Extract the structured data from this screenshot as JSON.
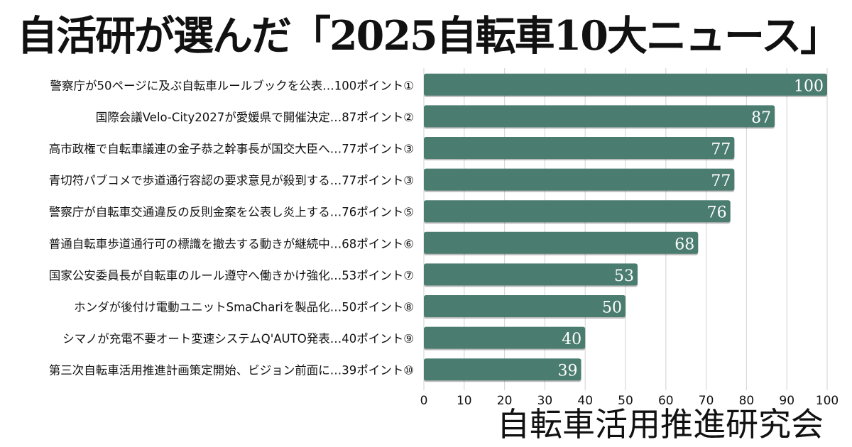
{
  "title": "自活研が選んだ「2025自転車10大ニュース」",
  "publisher": "自転車活用推進研究会",
  "colors": {
    "bar": "#4b7c70",
    "bar_label": "#ffffff",
    "grid": "#d9d9d9",
    "text": "#111111"
  },
  "chart_data": {
    "type": "bar",
    "orientation": "horizontal",
    "categories": [
      "警察庁が50ページに及ぶ自転車ルールブックを公表…100ポイント①",
      "国際会議Velo-City2027が愛媛県で開催決定…87ポイント②",
      "高市政権で自転車議連の金子恭之幹事長が国交大臣へ…77ポイント③",
      "青切符パブコメで歩道通行容認の要求意見が殺到する…77ポイント③",
      "警察庁が自転車交通違反の反則金案を公表し炎上する…76ポイント⑤",
      "普通自転車歩道通行可の標識を撤去する動きが継続中…68ポイント⑥",
      "国家公安委員長が自転車のルール遵守へ働きかけ強化…53ポイント⑦",
      "ホンダが後付け電動ユニットSmaChariを製品化…50ポイント⑧",
      "シマノが充電不要オート変速システムQ'AUTO発表…40ポイント⑨",
      "第三次自転車活用推進計画策定開始、ビジョン前面に…39ポイント⑩"
    ],
    "values": [
      100,
      87,
      77,
      77,
      76,
      68,
      53,
      50,
      40,
      39
    ],
    "xlim": [
      0,
      100
    ],
    "xticks": [
      0,
      10,
      20,
      30,
      40,
      50,
      60,
      70,
      80,
      90,
      100
    ],
    "grid": true,
    "title": "自活研が選んだ「2025自転車10大ニュース」",
    "xlabel": "",
    "ylabel": ""
  }
}
